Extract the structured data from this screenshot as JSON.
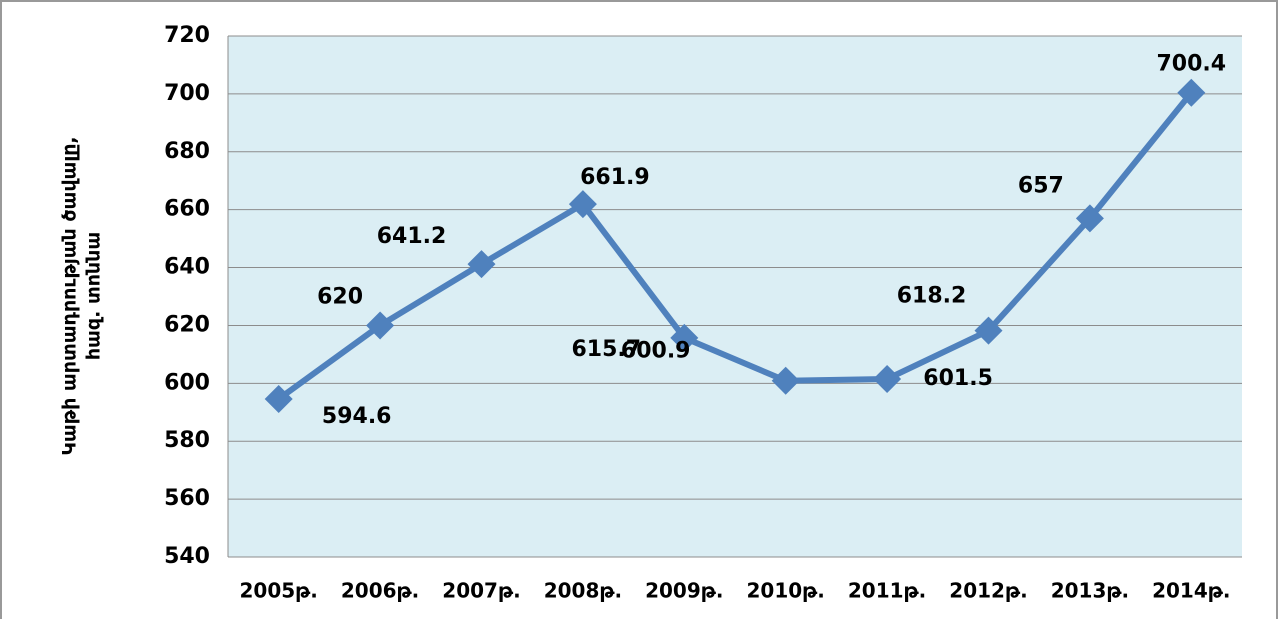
{
  "chart_data": {
    "type": "line",
    "ylabel": [
      "Կաթի արտադրության ծավալը,",
      "հազ. տոննա"
    ],
    "categories": [
      "2005թ.",
      "2006թ.",
      "2007թ.",
      "2008թ.",
      "2009թ.",
      "2010թ.",
      "2011թ.",
      "2012թ.",
      "2013թ.",
      "2014թ."
    ],
    "series": [
      {
        "color": "#4f81bd",
        "values": [
          594.6,
          620,
          641.2,
          661.9,
          615.7,
          600.9,
          601.5,
          618.2,
          657,
          700.4
        ]
      }
    ],
    "ylim": [
      540,
      720
    ],
    "yticks": [
      540,
      560,
      580,
      600,
      620,
      640,
      660,
      680,
      700,
      720
    ],
    "grid": true
  }
}
